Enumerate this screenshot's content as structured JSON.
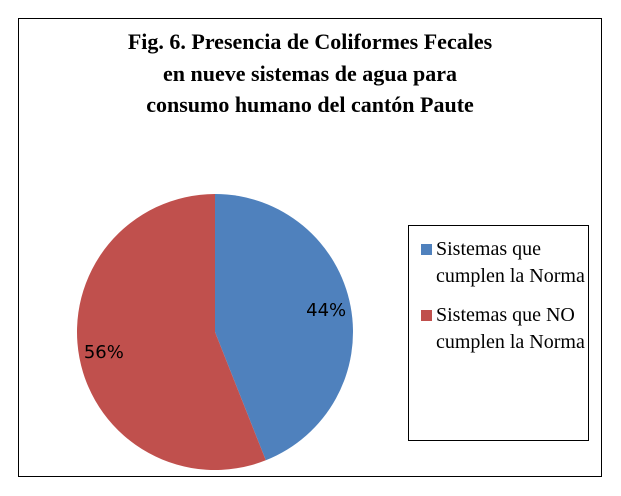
{
  "chart_data": {
    "type": "pie",
    "title": "Fig. 6. Presencia de Coliformes Fecales en nueve sistemas de agua para consumo humano del cantón Paute",
    "categories": [
      "Sistemas que cumplen la Norma",
      "Sistemas que NO cumplen la Norma"
    ],
    "values": [
      44,
      56
    ],
    "value_labels": [
      "44%",
      "56%"
    ],
    "colors": [
      "#4f81bd",
      "#c0504d"
    ],
    "legend": "right"
  }
}
